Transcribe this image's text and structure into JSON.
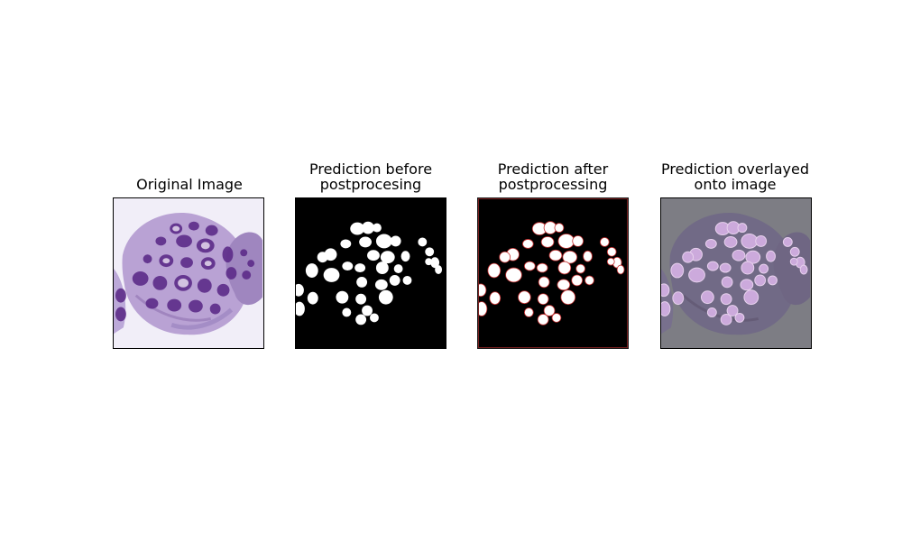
{
  "panels": [
    {
      "title_line1": "Original Image",
      "title_line2": ""
    },
    {
      "title_line1": "Prediction before",
      "title_line2": "postprocesing"
    },
    {
      "title_line1": "Prediction after",
      "title_line2": "postprocessing"
    },
    {
      "title_line1": "Prediction overlayed",
      "title_line2": "onto image"
    }
  ],
  "colors": {
    "tissue_background": "#efe9f6",
    "tissue_pink": "#b79ac9",
    "tissue_stroma": "#8f72b0",
    "nuclei_dark": "#5f2d8f",
    "mask_background": "#000000",
    "mask_foreground": "#ffffff",
    "overlay_tint": "#7d7d84",
    "overlay_highlight": "#d8b4e8"
  }
}
